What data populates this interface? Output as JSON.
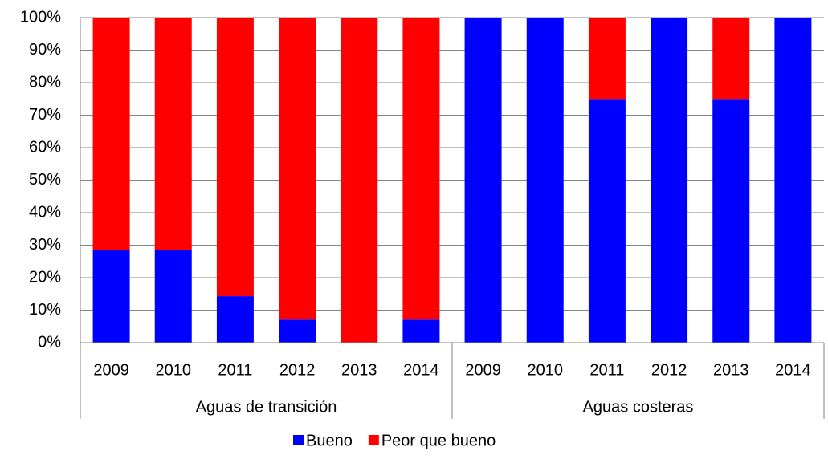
{
  "chart_data": {
    "type": "stacked_bar",
    "groups": [
      {
        "label": "Aguas de transición",
        "categories": [
          "2009",
          "2010",
          "2011",
          "2012",
          "2013",
          "2014"
        ]
      },
      {
        "label": "Aguas costeras",
        "categories": [
          "2009",
          "2010",
          "2011",
          "2012",
          "2013",
          "2014"
        ]
      }
    ],
    "series": [
      {
        "name": "Bueno",
        "color": "#0000ff",
        "values": [
          28.6,
          28.6,
          14.3,
          7.1,
          0,
          7.1,
          100,
          100,
          75,
          100,
          75,
          100
        ]
      },
      {
        "name": "Peor que bueno",
        "color": "#ff0000",
        "values": [
          71.4,
          71.4,
          85.7,
          92.9,
          100,
          92.9,
          0,
          0,
          25,
          0,
          25,
          0
        ]
      }
    ],
    "ylim": [
      0,
      100
    ],
    "yticks": [
      {
        "value": 0,
        "label": "0%"
      },
      {
        "value": 10,
        "label": "10%"
      },
      {
        "value": 20,
        "label": "20%"
      },
      {
        "value": 30,
        "label": "30%"
      },
      {
        "value": 40,
        "label": "40%"
      },
      {
        "value": 50,
        "label": "50%"
      },
      {
        "value": 60,
        "label": "60%"
      },
      {
        "value": 70,
        "label": "70%"
      },
      {
        "value": 80,
        "label": "80%"
      },
      {
        "value": 90,
        "label": "90%"
      },
      {
        "value": 100,
        "label": "100%"
      }
    ],
    "grid": true
  }
}
